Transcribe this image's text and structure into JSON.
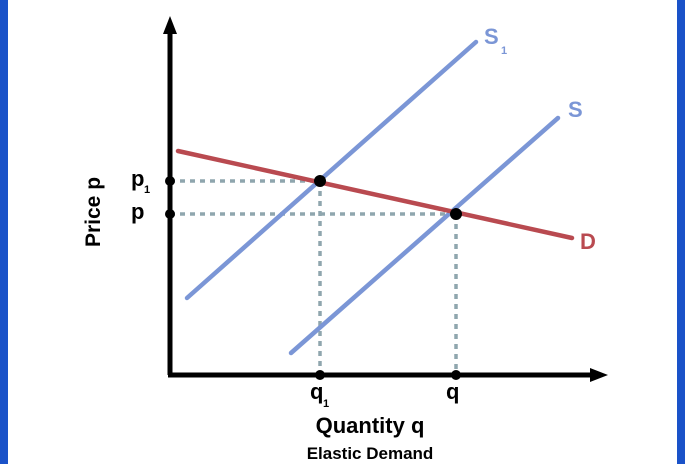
{
  "diagram": {
    "axes": {
      "y_label": "Price p",
      "x_label": "Quantity q"
    },
    "caption": "Elastic Demand",
    "curves": {
      "supply_shifted": {
        "label": "S",
        "subscript": "1",
        "color": "#7b96d6"
      },
      "supply": {
        "label": "S",
        "color": "#7b96d6"
      },
      "demand": {
        "label": "D",
        "color": "#b94a50"
      }
    },
    "ticks": {
      "p1": {
        "label": "p",
        "subscript": "1"
      },
      "p": {
        "label": "p"
      },
      "q1": {
        "label": "q",
        "subscript": "1"
      },
      "q": {
        "label": "q"
      }
    },
    "guide_color": "#8fa6ae",
    "axis_color": "#000000",
    "background": "#ffffff",
    "frame_color": "#1e5fd8"
  }
}
